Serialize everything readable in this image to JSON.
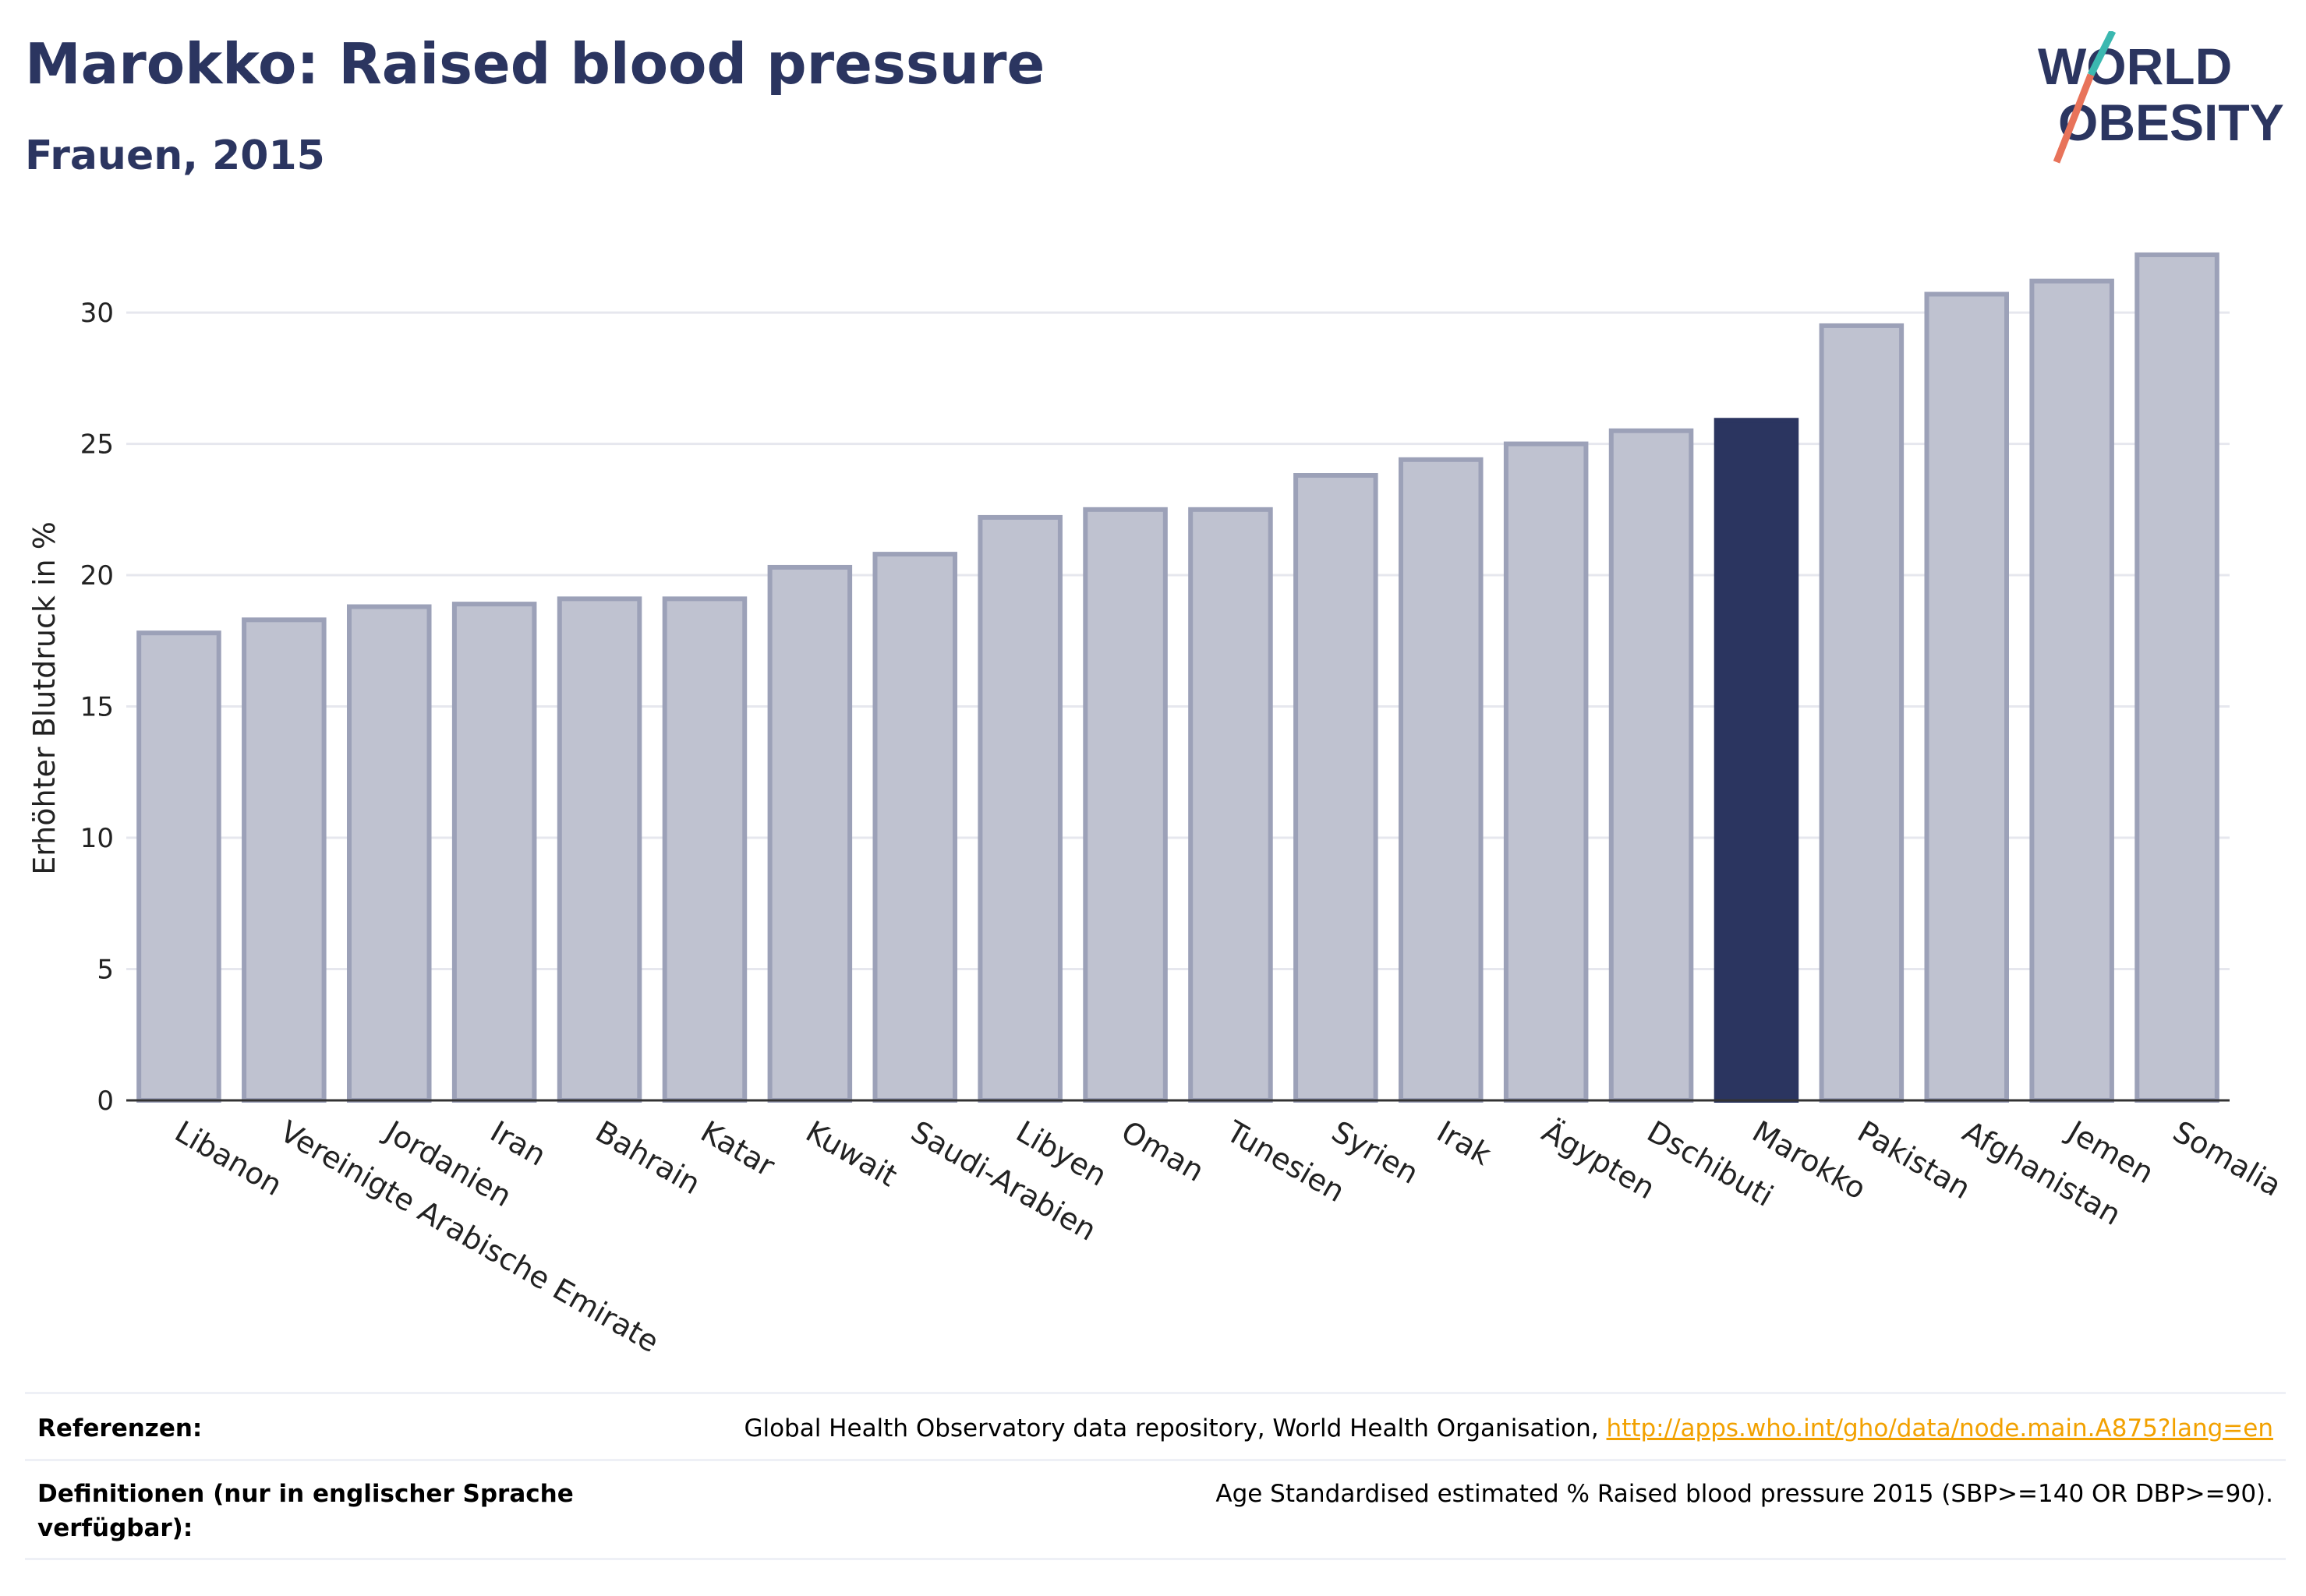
{
  "header": {
    "title": "Marokko: Raised blood pressure",
    "subtitle": "Frauen, 2015"
  },
  "logo": {
    "line1": "WORLD",
    "line2": "OBESITY"
  },
  "chart_data": {
    "type": "bar",
    "ylabel": "Erhöhter Blutdruck in %",
    "xlabel": "",
    "ylim": [
      0,
      33
    ],
    "yticks": [
      0,
      5,
      10,
      15,
      20,
      25,
      30
    ],
    "grid": true,
    "highlight": "Marokko",
    "colors": {
      "bar": "#bfc2d0",
      "bar_edge": "#9ca1b8",
      "highlight": "#2b3560",
      "grid": "#e6e7ee",
      "axis": "#333333"
    },
    "categories": [
      "Libanon",
      "Vereinigte Arabische Emirate",
      "Jordanien",
      "Iran",
      "Bahrain",
      "Katar",
      "Kuwait",
      "Saudi-Arabien",
      "Libyen",
      "Oman",
      "Tunesien",
      "Syrien",
      "Irak",
      "Ägypten",
      "Dschibuti",
      "Marokko",
      "Pakistan",
      "Afghanistan",
      "Jemen",
      "Somalia"
    ],
    "values": [
      17.8,
      18.3,
      18.8,
      18.9,
      19.1,
      19.1,
      20.3,
      20.8,
      22.2,
      22.5,
      22.5,
      23.8,
      24.4,
      25.0,
      25.5,
      25.9,
      29.5,
      30.7,
      31.2,
      32.2
    ]
  },
  "footer": {
    "references_label": "Referenzen:",
    "references_text": "Global Health Observatory data repository, World Health Organisation,",
    "references_link": "http://apps.who.int/gho/data/node.main.A875?lang=en",
    "definitions_label": "Definitionen (nur in englischer Sprache verfügbar):",
    "definitions_text": "Age Standardised estimated % Raised blood pressure 2015 (SBP>=140 OR DBP>=90)."
  }
}
